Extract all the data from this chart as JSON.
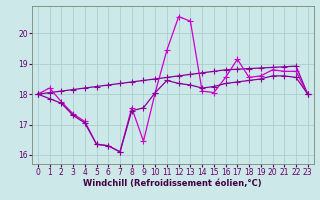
{
  "x": [
    0,
    1,
    2,
    3,
    4,
    5,
    6,
    7,
    8,
    9,
    10,
    11,
    12,
    13,
    14,
    15,
    16,
    17,
    18,
    19,
    20,
    21,
    22,
    23
  ],
  "line_trend": [
    18.0,
    18.05,
    18.1,
    18.15,
    18.2,
    18.25,
    18.3,
    18.35,
    18.4,
    18.45,
    18.5,
    18.55,
    18.6,
    18.65,
    18.7,
    18.75,
    18.8,
    18.82,
    18.84,
    18.86,
    18.88,
    18.9,
    18.92,
    18.0
  ],
  "line_main": [
    18.0,
    18.2,
    17.75,
    17.35,
    17.1,
    16.35,
    16.3,
    16.1,
    17.55,
    16.45,
    18.05,
    19.45,
    20.55,
    20.4,
    18.1,
    18.05,
    18.55,
    19.15,
    18.55,
    18.6,
    18.8,
    18.75,
    18.75,
    18.0
  ],
  "line_smooth": [
    18.0,
    17.85,
    17.7,
    17.3,
    17.05,
    16.35,
    16.3,
    16.1,
    17.45,
    17.55,
    18.05,
    18.45,
    18.35,
    18.3,
    18.2,
    18.25,
    18.35,
    18.4,
    18.45,
    18.5,
    18.6,
    18.6,
    18.55,
    18.0
  ],
  "color_trend": "#880099",
  "color_main": "#cc00cc",
  "color_smooth": "#880099",
  "bg_color": "#cce8e8",
  "grid_color": "#aad0d0",
  "xlabel": "Windchill (Refroidissement éolien,°C)",
  "xlim": [
    -0.5,
    23.5
  ],
  "ylim": [
    15.7,
    20.9
  ],
  "yticks": [
    16,
    17,
    18,
    19,
    20
  ],
  "xticks": [
    0,
    1,
    2,
    3,
    4,
    5,
    6,
    7,
    8,
    9,
    10,
    11,
    12,
    13,
    14,
    15,
    16,
    17,
    18,
    19,
    20,
    21,
    22,
    23
  ],
  "marker": "+",
  "markersize": 4,
  "linewidth": 0.9,
  "tick_labelsize": 5.5,
  "xlabel_fontsize": 6.0
}
